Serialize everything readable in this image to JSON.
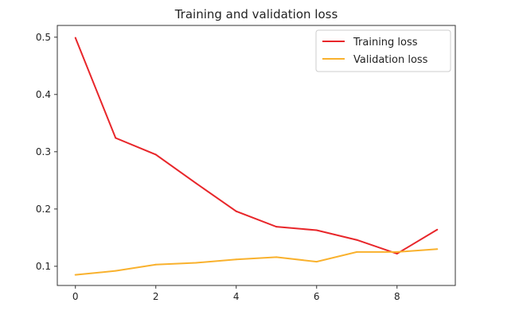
{
  "chart_data": {
    "type": "line",
    "title": "Training and validation loss",
    "xlabel": "",
    "ylabel": "",
    "xlim": [
      -0.45,
      9.45
    ],
    "ylim": [
      0.0665,
      0.5205
    ],
    "xticks": [
      0,
      2,
      4,
      6,
      8
    ],
    "yticks": [
      0.1,
      0.2,
      0.3,
      0.4,
      0.5
    ],
    "xtick_labels": [
      "0",
      "2",
      "4",
      "6",
      "8"
    ],
    "ytick_labels": [
      "0.1",
      "0.2",
      "0.3",
      "0.4",
      "0.5"
    ],
    "grid": false,
    "legend_position": "top-right",
    "x": [
      0,
      1,
      2,
      3,
      4,
      5,
      6,
      7,
      8,
      9
    ],
    "series": [
      {
        "name": "Training loss",
        "color": "#e8262a",
        "values": [
          0.499,
          0.324,
          0.295,
          0.245,
          0.196,
          0.169,
          0.163,
          0.146,
          0.122,
          0.164
        ]
      },
      {
        "name": "Validation loss",
        "color": "#f9b12d",
        "values": [
          0.085,
          0.092,
          0.103,
          0.106,
          0.112,
          0.116,
          0.108,
          0.125,
          0.125,
          0.13
        ]
      }
    ]
  }
}
